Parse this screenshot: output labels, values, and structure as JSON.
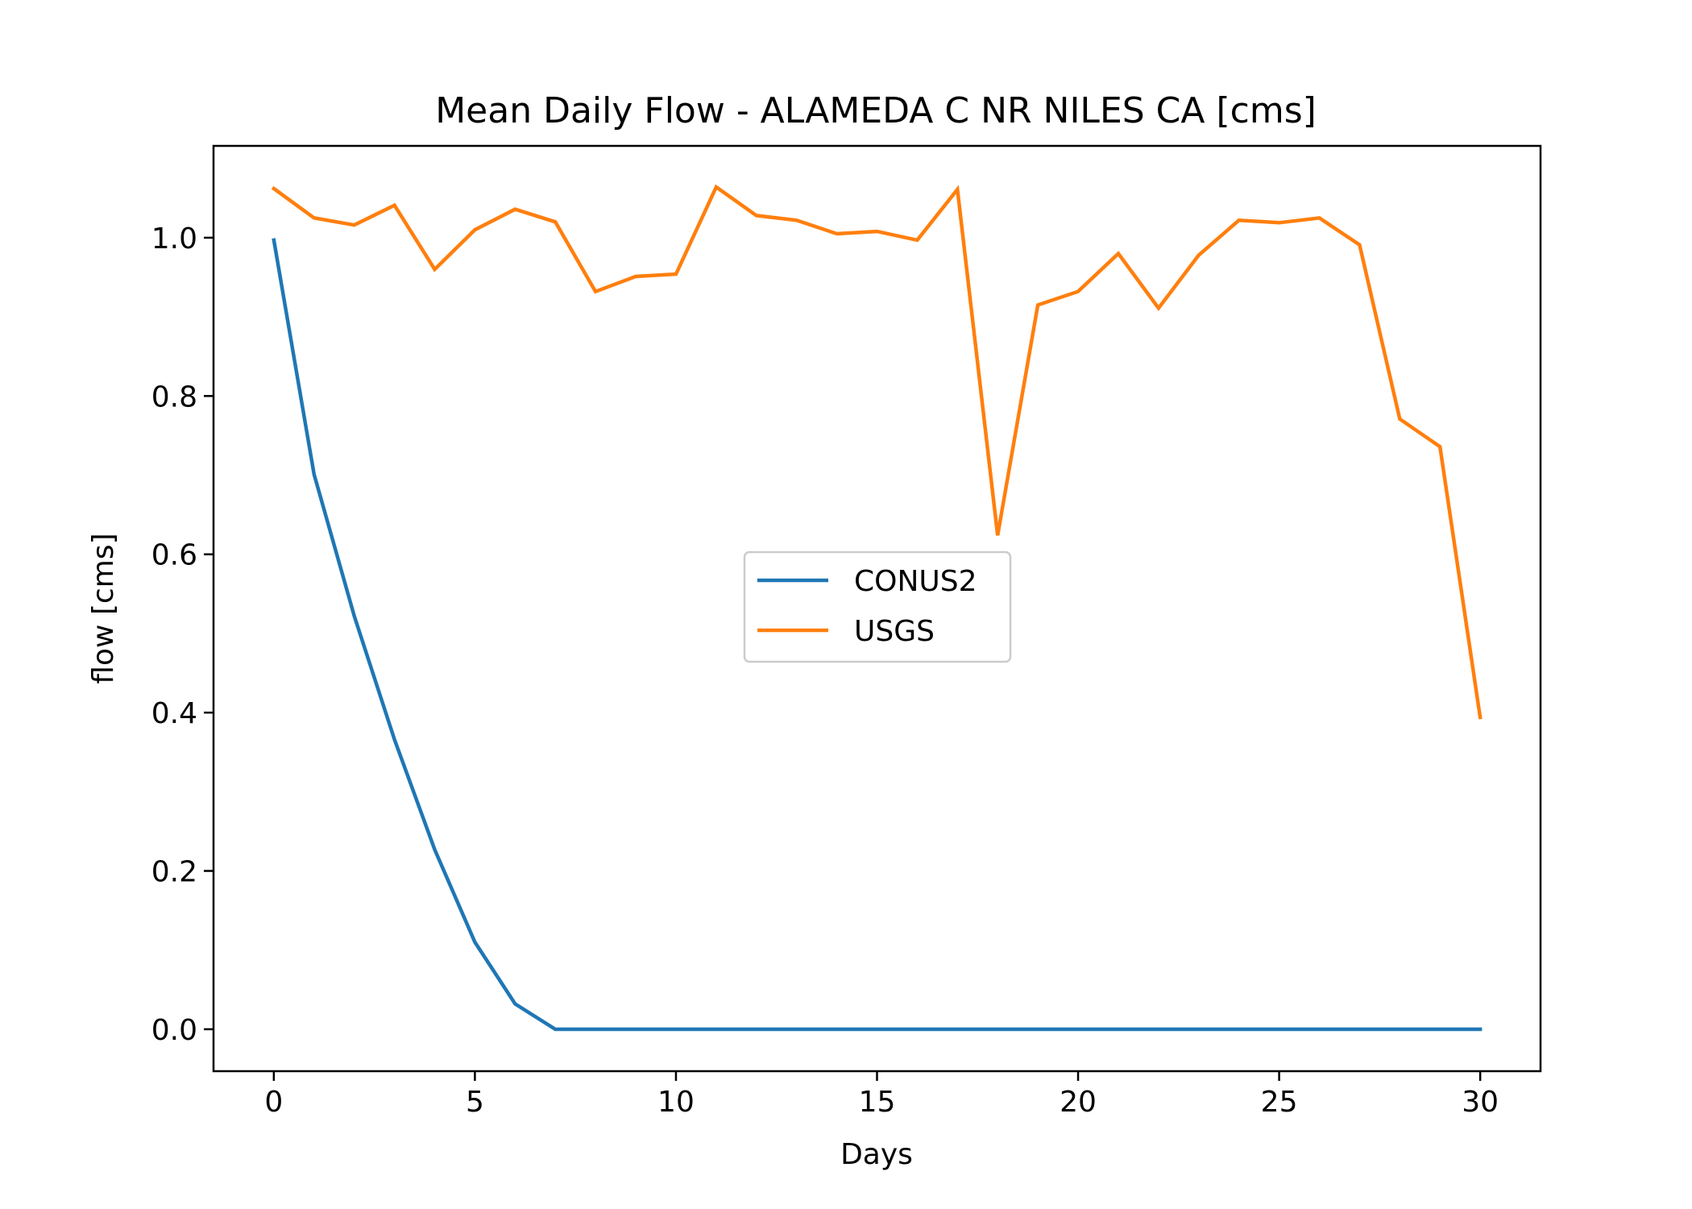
{
  "chart_data": {
    "type": "line",
    "title": "Mean Daily Flow - ALAMEDA C NR NILES CA [cms]",
    "xlabel": "Days",
    "ylabel": "flow [cms]",
    "xlim": [
      -1.5,
      31.5
    ],
    "ylim": [
      -0.053,
      1.116
    ],
    "xticks": [
      0,
      5,
      10,
      15,
      20,
      25,
      30
    ],
    "xtick_labels": [
      "0",
      "5",
      "10",
      "15",
      "20",
      "25",
      "30"
    ],
    "yticks": [
      0.0,
      0.2,
      0.4,
      0.6,
      0.8,
      1.0
    ],
    "ytick_labels": [
      "0.0",
      "0.2",
      "0.4",
      "0.6",
      "0.8",
      "1.0"
    ],
    "grid": false,
    "legend_position": "center",
    "x": [
      0,
      1,
      2,
      3,
      4,
      5,
      6,
      7,
      8,
      9,
      10,
      11,
      12,
      13,
      14,
      15,
      16,
      17,
      18,
      19,
      20,
      21,
      22,
      23,
      24,
      25,
      26,
      27,
      28,
      29,
      30
    ],
    "series": [
      {
        "name": "CONUS2",
        "color": "#1f77b4",
        "values": [
          0.997,
          0.701,
          0.522,
          0.366,
          0.227,
          0.11,
          0.032,
          0.0,
          0.0,
          0.0,
          0.0,
          0.0,
          0.0,
          0.0,
          0.0,
          0.0,
          0.0,
          0.0,
          0.0,
          0.0,
          0.0,
          0.0,
          0.0,
          0.0,
          0.0,
          0.0,
          0.0,
          0.0,
          0.0,
          0.0,
          0.0
        ]
      },
      {
        "name": "USGS",
        "color": "#ff7f0e",
        "values": [
          1.062,
          1.025,
          1.016,
          1.041,
          0.96,
          1.01,
          1.036,
          1.02,
          0.932,
          0.951,
          0.954,
          1.064,
          1.028,
          1.022,
          1.005,
          1.008,
          0.997,
          1.061,
          0.624,
          0.915,
          0.932,
          0.98,
          0.911,
          0.978,
          1.022,
          1.019,
          1.025,
          0.991,
          0.771,
          0.736,
          0.394
        ]
      }
    ]
  }
}
